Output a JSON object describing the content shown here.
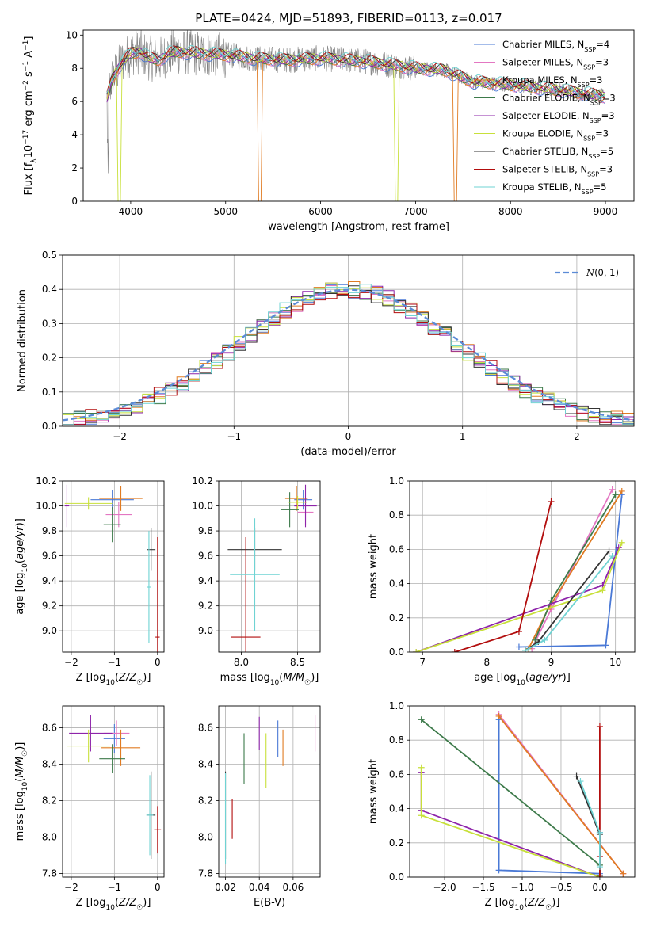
{
  "figure": {
    "title": "PLATE=0424, MJD=51893, FIBERID=0113, z=0.017"
  },
  "series_styles": [
    {
      "name": "Chabrier MILES",
      "nssp": "4",
      "color": "#4a79d6"
    },
    {
      "name": "Salpeter MILES",
      "nssp": "3",
      "color": "#e377c2"
    },
    {
      "name": "Kroupa MILES",
      "nssp": "3",
      "color": "#e07b22"
    },
    {
      "name": "Chabrier ELODIE",
      "nssp": "3",
      "color": "#3d7a4a"
    },
    {
      "name": "Salpeter ELODIE",
      "nssp": "3",
      "color": "#8e24aa"
    },
    {
      "name": "Kroupa ELODIE",
      "nssp": "3",
      "color": "#c8e03a"
    },
    {
      "name": "Chabrier STELIB",
      "nssp": "5",
      "color": "#333333"
    },
    {
      "name": "Salpeter STELIB",
      "nssp": "3",
      "color": "#b20d0d"
    },
    {
      "name": "Kroupa STELIB",
      "nssp": "5",
      "color": "#6fd3d3"
    }
  ],
  "chart_data": [
    {
      "id": "spectrum",
      "type": "line",
      "xlabel": "wavelength [Angstrom, rest frame]",
      "ylabel": "Flux [f_λ 10^-17 erg cm^-2 s^-1 A^-1]",
      "xlim": [
        3500,
        9300
      ],
      "ylim": [
        0,
        10.3
      ],
      "xticks": [
        4000,
        5000,
        6000,
        7000,
        8000,
        9000
      ],
      "yticks": [
        0,
        2,
        4,
        6,
        8,
        10
      ],
      "data_color": "#808080",
      "continuum": {
        "x": [
          3750,
          3800,
          3850,
          3900,
          3950,
          4000,
          4100,
          4200,
          4300,
          4400,
          4500,
          4700,
          5000,
          5300,
          5600,
          6000,
          6500,
          7000,
          7300,
          7600,
          8000,
          8500,
          9000
        ],
        "y": [
          6.2,
          7.3,
          7.8,
          8.3,
          8.6,
          8.9,
          9.0,
          8.6,
          8.5,
          8.9,
          9.0,
          8.9,
          8.8,
          8.6,
          8.5,
          8.6,
          8.4,
          8.0,
          7.9,
          7.2,
          7.0,
          6.7,
          6.3
        ]
      },
      "model_dips": [
        {
          "x": 5360,
          "color": "#e07b22"
        },
        {
          "x": 6800,
          "color": "#c8e03a"
        },
        {
          "x": 7420,
          "color": "#e07b22"
        },
        {
          "x": 3880,
          "color": "#c8e03a"
        }
      ]
    },
    {
      "id": "residuals",
      "type": "histogram",
      "xlabel": "(data-model)/error",
      "ylabel": "Normed distribution",
      "xlim": [
        -2.5,
        2.5
      ],
      "ylim": [
        0,
        0.5
      ],
      "xticks": [
        -2,
        -1,
        0,
        1,
        2
      ],
      "yticks": [
        0,
        0.1,
        0.2,
        0.3,
        0.4,
        0.5
      ],
      "bin_width": 0.1,
      "gaussian_label": "N(0,1)",
      "gaussian_color": "#5b8bd6"
    },
    {
      "id": "age-vs-Z",
      "type": "scatter",
      "xlabel": "Z [log10(Z/Z☉)]",
      "ylabel": "age [log10(age/yr)]",
      "xlim": [
        -2.2,
        0.15
      ],
      "ylim": [
        8.83,
        10.2
      ],
      "xticks": [
        -2,
        -1,
        0
      ],
      "yticks": [
        9.0,
        9.2,
        9.4,
        9.6,
        9.8,
        10.0,
        10.2
      ],
      "points": [
        {
          "x": -1.05,
          "y": 10.05,
          "xerr": 0.5,
          "yerr": 0.08,
          "color": "#4a79d6"
        },
        {
          "x": -0.9,
          "y": 9.93,
          "xerr": 0.3,
          "yerr": 0.1,
          "color": "#e377c2"
        },
        {
          "x": -0.85,
          "y": 10.06,
          "xerr": 0.5,
          "yerr": 0.1,
          "color": "#e07b22"
        },
        {
          "x": -1.05,
          "y": 9.85,
          "xerr": 0.2,
          "yerr": 0.14,
          "color": "#3d7a4a"
        },
        {
          "x": -2.1,
          "y": 10.0,
          "xerr": 0.05,
          "yerr": 0.17,
          "color": "#8e24aa"
        },
        {
          "x": -1.6,
          "y": 10.02,
          "xerr": 0.55,
          "yerr": 0.05,
          "color": "#c8e03a"
        },
        {
          "x": -0.15,
          "y": 9.65,
          "xerr": 0.1,
          "yerr": 0.17,
          "color": "#333333"
        },
        {
          "x": 0.0,
          "y": 8.95,
          "xerr": 0.05,
          "yerr": 0.8,
          "color": "#b20d0d"
        },
        {
          "x": -0.2,
          "y": 9.35,
          "xerr": 0.05,
          "yerr": 0.45,
          "color": "#6fd3d3"
        }
      ]
    },
    {
      "id": "age-vs-mass",
      "type": "scatter",
      "xlabel": "mass [log10(M/M☉)]",
      "xlim": [
        7.8,
        8.7
      ],
      "ylim": [
        8.83,
        10.2
      ],
      "xticks": [
        8.0,
        8.5
      ],
      "yticks": [
        9.0,
        9.2,
        9.4,
        9.6,
        9.8,
        10.0,
        10.2
      ],
      "points": [
        {
          "x": 8.55,
          "y": 10.05,
          "xerr": 0.08,
          "yerr": 0.08,
          "color": "#4a79d6"
        },
        {
          "x": 8.57,
          "y": 9.95,
          "xerr": 0.07,
          "yerr": 0.1,
          "color": "#e377c2"
        },
        {
          "x": 8.49,
          "y": 10.06,
          "xerr": 0.1,
          "yerr": 0.1,
          "color": "#e07b22"
        },
        {
          "x": 8.43,
          "y": 9.97,
          "xerr": 0.08,
          "yerr": 0.14,
          "color": "#3d7a4a"
        },
        {
          "x": 8.57,
          "y": 10.0,
          "xerr": 0.1,
          "yerr": 0.17,
          "color": "#8e24aa"
        },
        {
          "x": 8.5,
          "y": 10.03,
          "xerr": 0.08,
          "yerr": 0.05,
          "color": "#c8e03a"
        },
        {
          "x": 8.12,
          "y": 9.65,
          "xerr": 0.24,
          "yerr": 0.17,
          "color": "#333333"
        },
        {
          "x": 8.04,
          "y": 8.95,
          "xerr": 0.13,
          "yerr": 0.8,
          "color": "#b20d0d"
        },
        {
          "x": 8.12,
          "y": 9.45,
          "xerr": 0.22,
          "yerr": 0.45,
          "color": "#6fd3d3"
        }
      ]
    },
    {
      "id": "massweight-vs-age",
      "type": "line",
      "xlabel": "age [log10(age/yr)]",
      "ylabel": "mass weight",
      "xlim": [
        6.8,
        10.3
      ],
      "ylim": [
        0,
        1.0
      ],
      "xticks": [
        7,
        8,
        9,
        10
      ],
      "yticks": [
        0,
        0.2,
        0.4,
        0.6,
        0.8,
        1.0
      ],
      "series": [
        {
          "color": "#4a79d6",
          "x": [
            8.5,
            9.85,
            10.1
          ],
          "y": [
            0.03,
            0.04,
            0.92
          ]
        },
        {
          "color": "#e377c2",
          "x": [
            8.7,
            9.0,
            9.95
          ],
          "y": [
            0.02,
            0.25,
            0.95
          ]
        },
        {
          "color": "#e07b22",
          "x": [
            8.65,
            8.95,
            10.1
          ],
          "y": [
            0.02,
            0.25,
            0.94
          ]
        },
        {
          "color": "#3d7a4a",
          "x": [
            8.75,
            9.0,
            10.0
          ],
          "y": [
            0.07,
            0.3,
            0.92
          ]
        },
        {
          "color": "#8e24aa",
          "x": [
            6.9,
            9.8,
            10.05
          ],
          "y": [
            0.0,
            0.39,
            0.61
          ]
        },
        {
          "color": "#c8e03a",
          "x": [
            6.9,
            9.8,
            10.1
          ],
          "y": [
            0.0,
            0.36,
            0.64
          ]
        },
        {
          "color": "#333333",
          "x": [
            8.6,
            8.8,
            9.9
          ],
          "y": [
            0.01,
            0.06,
            0.59
          ]
        },
        {
          "color": "#b20d0d",
          "x": [
            7.5,
            8.5,
            9.0
          ],
          "y": [
            0.0,
            0.12,
            0.88
          ]
        },
        {
          "color": "#6fd3d3",
          "x": [
            8.6,
            8.9,
            9.95
          ],
          "y": [
            0.01,
            0.07,
            0.56
          ]
        }
      ]
    },
    {
      "id": "mass-vs-Z",
      "type": "scatter",
      "xlabel": "Z [log10(Z/Z☉)]",
      "ylabel": "mass [log10(M/M☉)]",
      "xlim": [
        -2.2,
        0.15
      ],
      "ylim": [
        7.78,
        8.72
      ],
      "xticks": [
        -2,
        -1,
        0
      ],
      "yticks": [
        7.8,
        8.0,
        8.2,
        8.4,
        8.6
      ],
      "points": [
        {
          "x": -1.0,
          "y": 8.54,
          "xerr": 0.25,
          "yerr": 0.08,
          "color": "#4a79d6"
        },
        {
          "x": -0.95,
          "y": 8.57,
          "xerr": 0.3,
          "yerr": 0.07,
          "color": "#e377c2"
        },
        {
          "x": -0.85,
          "y": 8.49,
          "xerr": 0.45,
          "yerr": 0.1,
          "color": "#e07b22"
        },
        {
          "x": -1.05,
          "y": 8.43,
          "xerr": 0.3,
          "yerr": 0.08,
          "color": "#3d7a4a"
        },
        {
          "x": -1.55,
          "y": 8.57,
          "xerr": 0.5,
          "yerr": 0.1,
          "color": "#8e24aa"
        },
        {
          "x": -1.6,
          "y": 8.5,
          "xerr": 0.5,
          "yerr": 0.09,
          "color": "#c8e03a"
        },
        {
          "x": -0.15,
          "y": 8.12,
          "xerr": 0.1,
          "yerr": 0.24,
          "color": "#333333"
        },
        {
          "x": 0.0,
          "y": 8.04,
          "xerr": 0.08,
          "yerr": 0.13,
          "color": "#b20d0d"
        },
        {
          "x": -0.18,
          "y": 8.12,
          "xerr": 0.08,
          "yerr": 0.22,
          "color": "#6fd3d3"
        }
      ]
    },
    {
      "id": "mass-vs-EBV",
      "type": "scatter",
      "xlabel": "E(B-V)",
      "xlim": [
        0.016,
        0.076
      ],
      "ylim": [
        7.78,
        8.72
      ],
      "xticks": [
        0.02,
        0.04,
        0.06
      ],
      "yticks": [
        7.8,
        8.0,
        8.2,
        8.4,
        8.6
      ],
      "points": [
        {
          "x": 0.051,
          "y": 8.54,
          "yerr": 0.1,
          "color": "#4a79d6"
        },
        {
          "x": 0.073,
          "y": 8.57,
          "yerr": 0.1,
          "color": "#e377c2"
        },
        {
          "x": 0.054,
          "y": 8.49,
          "yerr": 0.1,
          "color": "#e07b22"
        },
        {
          "x": 0.031,
          "y": 8.43,
          "yerr": 0.14,
          "color": "#3d7a4a"
        },
        {
          "x": 0.04,
          "y": 8.57,
          "yerr": 0.09,
          "color": "#8e24aa"
        },
        {
          "x": 0.044,
          "y": 8.42,
          "yerr": 0.15,
          "color": "#c8e03a"
        },
        {
          "x": 0.02,
          "y": 8.12,
          "yerr": 0.24,
          "color": "#333333"
        },
        {
          "x": 0.024,
          "y": 8.1,
          "yerr": 0.11,
          "color": "#b20d0d"
        },
        {
          "x": 0.02,
          "y": 8.1,
          "yerr": 0.25,
          "color": "#6fd3d3"
        }
      ]
    },
    {
      "id": "massweight-vs-Z",
      "type": "line",
      "xlabel": "Z [log10(Z/Z☉)]",
      "ylabel": "mass weight",
      "xlim": [
        -2.45,
        0.45
      ],
      "ylim": [
        0,
        1.0
      ],
      "xticks": [
        -2.0,
        -1.5,
        -1.0,
        -0.5,
        0.0
      ],
      "yticks": [
        0,
        0.2,
        0.4,
        0.6,
        0.8,
        1.0
      ],
      "series": [
        {
          "color": "#4a79d6",
          "x": [
            -1.3,
            -1.3,
            0.0,
            0.0
          ],
          "y": [
            0.92,
            0.04,
            0.02,
            0.26
          ]
        },
        {
          "color": "#e377c2",
          "x": [
            -1.3,
            0.3
          ],
          "y": [
            0.95,
            0.02
          ]
        },
        {
          "color": "#e07b22",
          "x": [
            -1.3,
            0.3
          ],
          "y": [
            0.94,
            0.02
          ]
        },
        {
          "color": "#3d7a4a",
          "x": [
            -2.3,
            0.0
          ],
          "y": [
            0.92,
            0.07
          ]
        },
        {
          "color": "#8e24aa",
          "x": [
            -2.3,
            -2.3,
            0.0
          ],
          "y": [
            0.61,
            0.39,
            0.0
          ]
        },
        {
          "color": "#c8e03a",
          "x": [
            -2.3,
            -2.3,
            0.0
          ],
          "y": [
            0.64,
            0.36,
            0.0
          ]
        },
        {
          "color": "#333333",
          "x": [
            -0.3,
            0.0,
            0.0
          ],
          "y": [
            0.59,
            0.25,
            0.01
          ]
        },
        {
          "color": "#b20d0d",
          "x": [
            0.0,
            0.0,
            0.0
          ],
          "y": [
            0.88,
            0.12,
            0.0
          ]
        },
        {
          "color": "#6fd3d3",
          "x": [
            -0.25,
            0.0,
            0.0
          ],
          "y": [
            0.56,
            0.26,
            0.06
          ]
        }
      ]
    }
  ]
}
